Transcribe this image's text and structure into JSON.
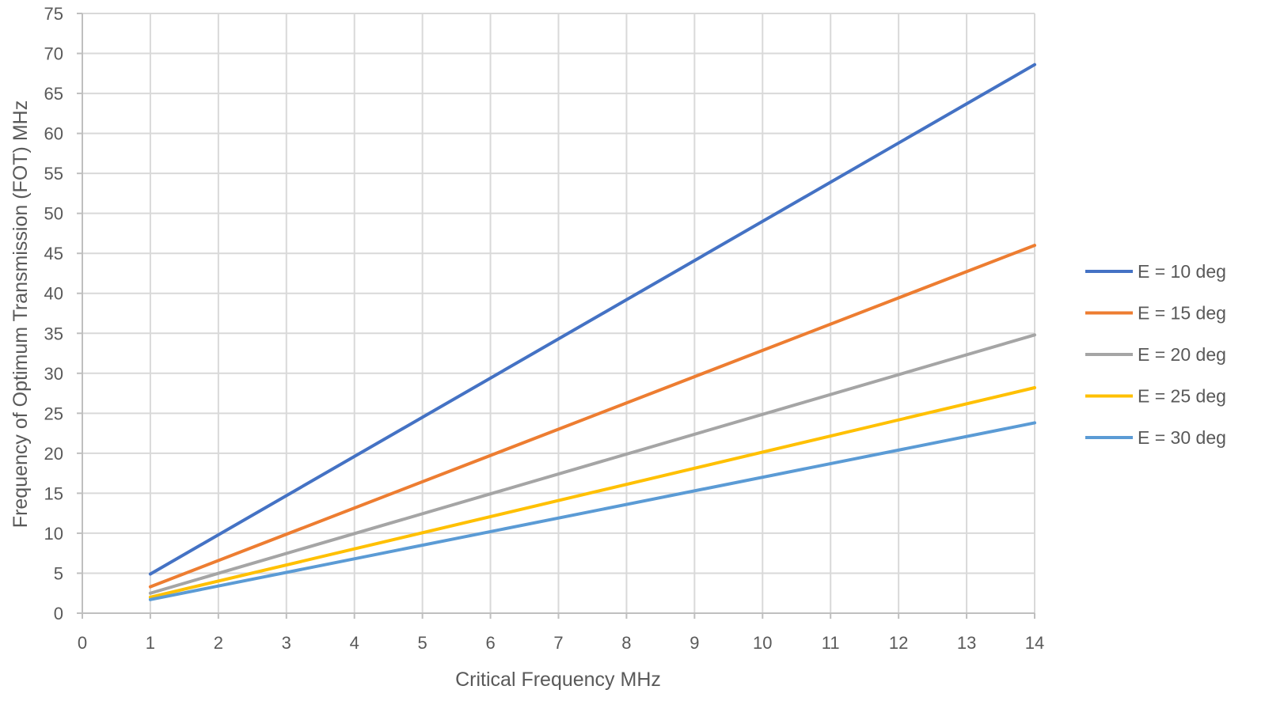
{
  "chart_data": {
    "type": "line",
    "title": "",
    "xlabel": "Critical Frequency  MHz",
    "ylabel": "Frequency of Optimum Transmission (FOT)  MHz",
    "xlim": [
      0,
      14
    ],
    "ylim": [
      0,
      75
    ],
    "xticks": [
      "0",
      "1",
      "2",
      "3",
      "4",
      "5",
      "6",
      "7",
      "8",
      "9",
      "10",
      "11",
      "12",
      "13",
      "14"
    ],
    "yticks": [
      "0",
      "5",
      "10",
      "15",
      "20",
      "25",
      "30",
      "35",
      "40",
      "45",
      "50",
      "55",
      "60",
      "65",
      "70",
      "75"
    ],
    "grid": true,
    "legend_position": "right",
    "series": [
      {
        "name": "E = 10 deg",
        "color": "#4472C4",
        "x": [
          1,
          14
        ],
        "y": [
          4.9,
          68.6
        ]
      },
      {
        "name": "E = 15 deg",
        "color": "#ED7D31",
        "x": [
          1,
          14
        ],
        "y": [
          3.3,
          46.0
        ]
      },
      {
        "name": "E = 20 deg",
        "color": "#A5A5A5",
        "x": [
          1,
          14
        ],
        "y": [
          2.5,
          34.8
        ]
      },
      {
        "name": "E = 25 deg",
        "color": "#FFC000",
        "x": [
          1,
          14
        ],
        "y": [
          2.0,
          28.2
        ]
      },
      {
        "name": "E = 30 deg",
        "color": "#5B9BD5",
        "x": [
          1,
          14
        ],
        "y": [
          1.7,
          23.8
        ]
      }
    ]
  }
}
